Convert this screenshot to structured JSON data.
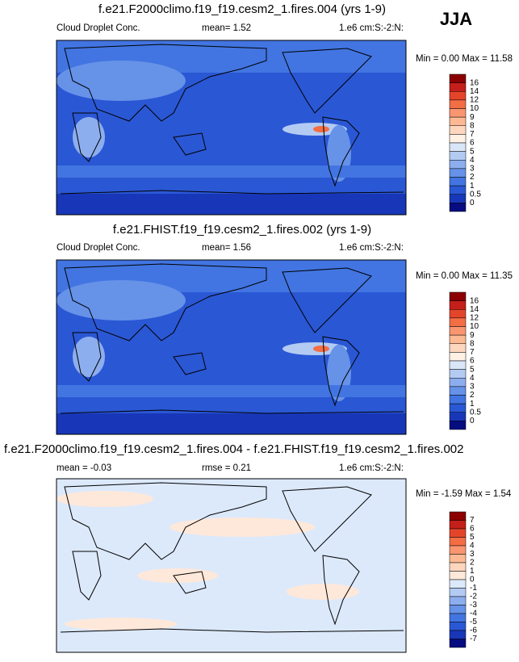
{
  "season": "JJA",
  "panels": [
    {
      "title": "f.e21.F2000climo.f19_f19.cesm2_1.fires.004 (yrs 1-9)",
      "left": "Cloud Droplet Conc.",
      "center": "mean=   1.52",
      "right": "1.e6 cm:S:-2:N:",
      "minmax": "Min =  0.00 Max = 11.58",
      "colorbar": {
        "labels": [
          "16",
          "14",
          "12",
          "10",
          "9",
          "8",
          "7",
          "6",
          "5",
          "4",
          "3",
          "2",
          "1",
          "0.5",
          "0"
        ],
        "colors": [
          "#8b0000",
          "#c41f1a",
          "#e4452a",
          "#f36d45",
          "#f99670",
          "#fcb994",
          "#fdd6bd",
          "#fff1e4",
          "#d9e6f8",
          "#b3cbf3",
          "#8daeee",
          "#6692e8",
          "#4275e1",
          "#2a57d4",
          "#1837b8",
          "#060d80"
        ]
      }
    },
    {
      "title": "f.e21.FHIST.f19_f19.cesm2_1.fires.002 (yrs 1-9)",
      "left": "Cloud Droplet Conc.",
      "center": "mean=   1.56",
      "right": "1.e6 cm:S:-2:N:",
      "minmax": "Min =  0.00 Max = 11.35",
      "colorbar": {
        "labels": [
          "16",
          "14",
          "12",
          "10",
          "9",
          "8",
          "7",
          "6",
          "5",
          "4",
          "3",
          "2",
          "1",
          "0.5",
          "0"
        ],
        "colors": [
          "#8b0000",
          "#c41f1a",
          "#e4452a",
          "#f36d45",
          "#f99670",
          "#fcb994",
          "#fdd6bd",
          "#fff1e4",
          "#d9e6f8",
          "#b3cbf3",
          "#8daeee",
          "#6692e8",
          "#4275e1",
          "#2a57d4",
          "#1837b8",
          "#060d80"
        ]
      }
    },
    {
      "title": "f.e21.F2000climo.f19_f19.cesm2_1.fires.004 - f.e21.FHIST.f19_f19.cesm2_1.fires.002",
      "left": "mean =  -0.03",
      "center": "rmse =  0.21",
      "right": "1.e6 cm:S:-2:N:",
      "minmax": "Min =  -1.59 Max =  1.54",
      "colorbar": {
        "labels": [
          "7",
          "6",
          "5",
          "4",
          "3",
          "2",
          "1",
          "0",
          "-1",
          "-2",
          "-3",
          "-4",
          "-5",
          "-6",
          "-7"
        ],
        "colors": [
          "#8b0000",
          "#c41f1a",
          "#e4452a",
          "#f36d45",
          "#f99670",
          "#fcb994",
          "#fdd6bd",
          "#fee8da",
          "#dce9fb",
          "#b3cbf3",
          "#8daeee",
          "#6692e8",
          "#4275e1",
          "#2a57d4",
          "#1837b8",
          "#060d80"
        ]
      }
    }
  ]
}
